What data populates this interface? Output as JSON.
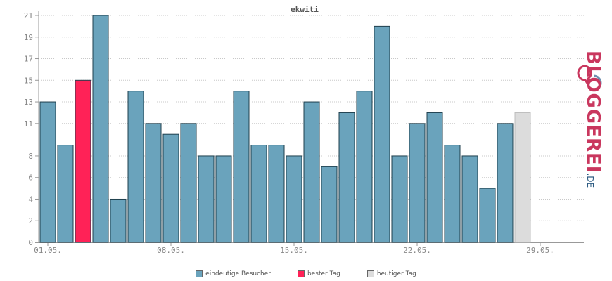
{
  "chart_data": {
    "type": "bar",
    "title": "ekwiti",
    "x_tick_labels": [
      "01.05.",
      "08.05.",
      "15.05.",
      "22.05.",
      "29.05."
    ],
    "x_tick_index": [
      1,
      8,
      15,
      22,
      29
    ],
    "y_ticks": [
      0,
      2,
      4,
      6,
      8,
      11,
      13,
      15,
      17,
      19,
      21
    ],
    "ylim": [
      0,
      21
    ],
    "grid": true,
    "legend_placement": "bottom-center",
    "days": [
      1,
      2,
      3,
      4,
      5,
      6,
      7,
      8,
      9,
      10,
      11,
      12,
      13,
      14,
      15,
      16,
      17,
      18,
      19,
      20,
      21,
      22,
      23,
      24,
      25,
      26,
      27,
      28
    ],
    "values": [
      13,
      9,
      15,
      21,
      4,
      14,
      11,
      10,
      11,
      8,
      8,
      14,
      9,
      9,
      8,
      13,
      7,
      12,
      14,
      20,
      8,
      11,
      12,
      9,
      8,
      5,
      11,
      12
    ],
    "best_day_index": 3,
    "today_index": 27,
    "colors": {
      "bar": "#6aa3bc",
      "bar_stroke": "#1f3f4d",
      "best": "#ff2257",
      "today": "#dcdcdc",
      "today_stroke": "#bdbdbd"
    }
  },
  "legend": [
    {
      "label": "eindeutige Besucher",
      "color": "#6aa3bc"
    },
    {
      "label": "bester Tag",
      "color": "#ff2257"
    },
    {
      "label": "heutiger Tag",
      "color": "#dcdcdc"
    }
  ],
  "logo": {
    "main": "BLOGGEREI",
    "suffix": ".DE"
  }
}
